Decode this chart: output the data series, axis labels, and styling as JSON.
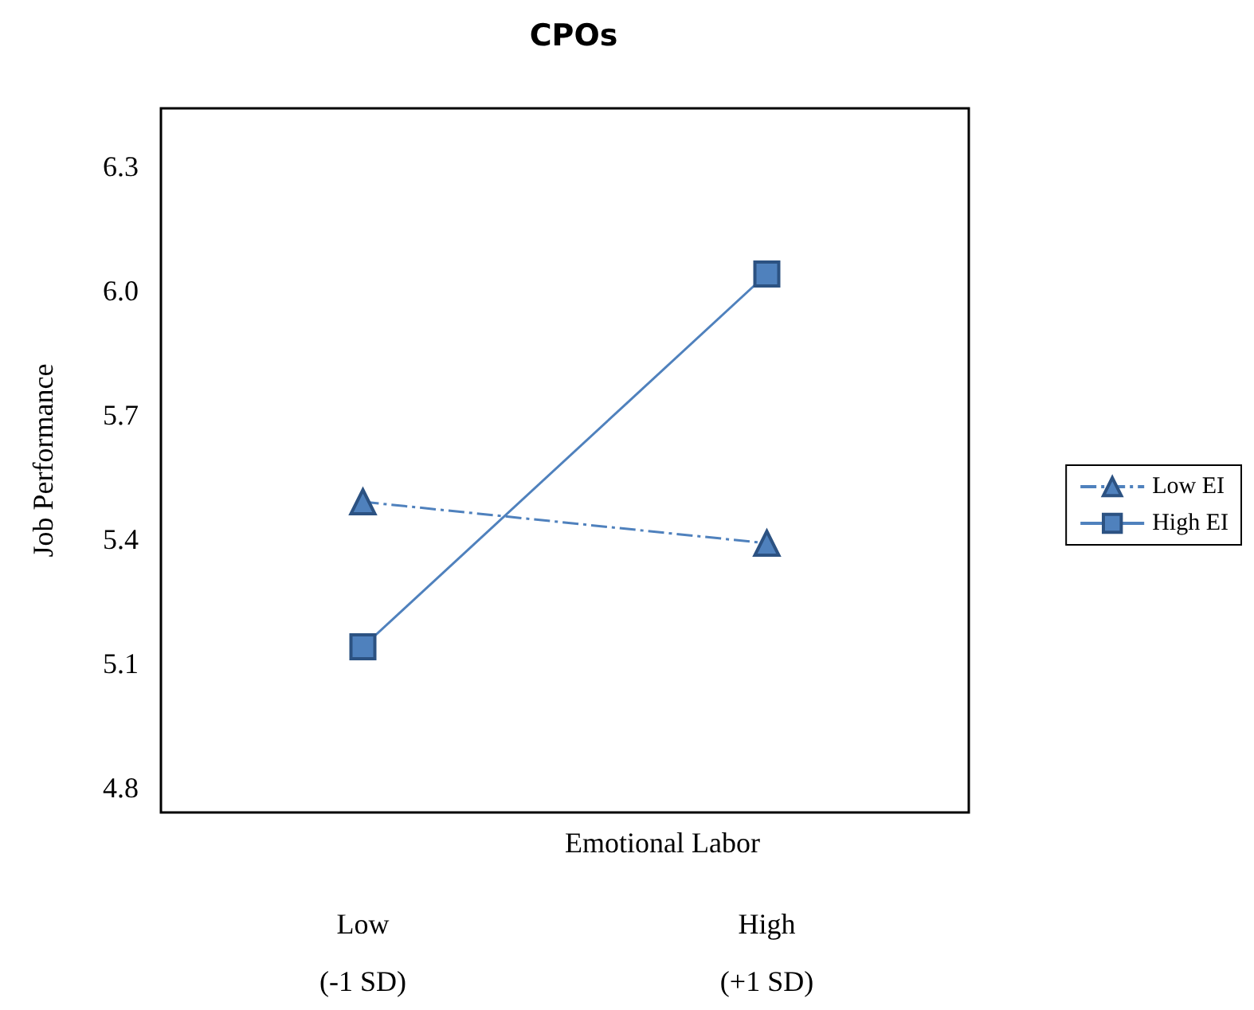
{
  "chart_data": {
    "type": "line",
    "title": "CPOs",
    "xlabel": "Emotional Labor",
    "ylabel": "Job Performance",
    "categories": [
      "Low\n(-1 SD)",
      "High\n(+1 SD)"
    ],
    "series": [
      {
        "name": "Low EI",
        "color": "#4f81bd",
        "values": [
          5.49,
          5.39
        ],
        "marker": "triangle",
        "line_style": "dashed"
      },
      {
        "name": "High EI",
        "color": "#4f81bd",
        "values": [
          5.14,
          6.04
        ],
        "marker": "square",
        "line_style": "solid"
      }
    ],
    "ylim": [
      4.74,
      6.44
    ],
    "yticks": [
      4.8,
      5.1,
      5.4,
      5.7,
      {
        "value": 6,
        "label": "6.0"
      },
      6.3
    ],
    "grid": false,
    "legend": "right"
  }
}
